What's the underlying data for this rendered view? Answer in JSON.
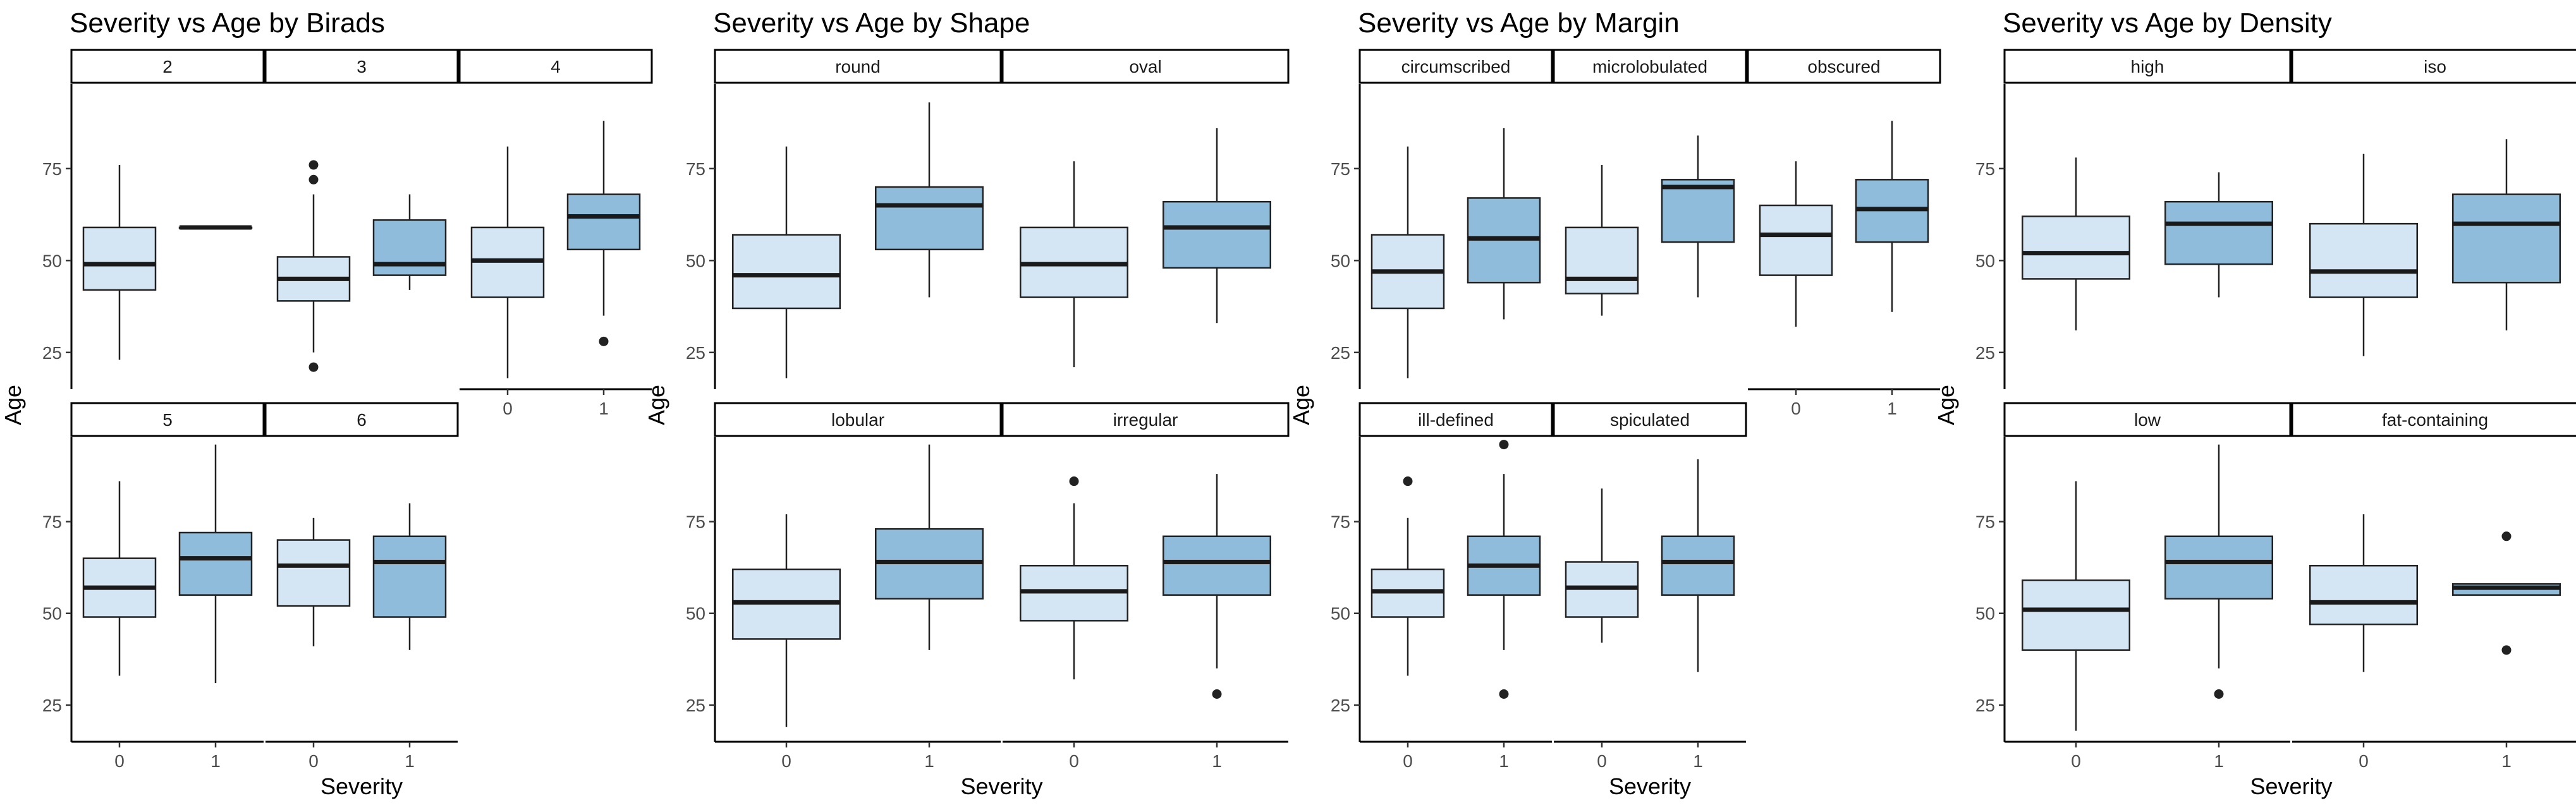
{
  "colors": {
    "severity_0": "#d4e5f4",
    "severity_1": "#8fbcdb",
    "outline": "#222222"
  },
  "chart_data": [
    {
      "type": "boxplot",
      "title": "Severity vs Age by Birads",
      "xlabel": "Severity",
      "ylabel": "Age",
      "x_categories": [
        "0",
        "1"
      ],
      "y_ticks": [
        25,
        50,
        75
      ],
      "ylim": [
        15,
        98
      ],
      "layout": {
        "cols": 3,
        "rows": 2
      },
      "panels": [
        {
          "label": "2",
          "boxes": [
            {
              "x": "0",
              "min": 23,
              "q1": 42,
              "median": 49,
              "q3": 59,
              "max": 76,
              "outliers": []
            },
            {
              "x": "1",
              "min": 59,
              "q1": 59,
              "median": 59,
              "q3": 59,
              "max": 59,
              "outliers": []
            }
          ]
        },
        {
          "label": "3",
          "boxes": [
            {
              "x": "0",
              "min": 25,
              "q1": 39,
              "median": 45,
              "q3": 51,
              "max": 68,
              "outliers": [
                76,
                72,
                21
              ]
            },
            {
              "x": "1",
              "min": 42,
              "q1": 46,
              "median": 49,
              "q3": 61,
              "max": 68,
              "outliers": []
            }
          ]
        },
        {
          "label": "4",
          "boxes": [
            {
              "x": "0",
              "min": 18,
              "q1": 40,
              "median": 50,
              "q3": 59,
              "max": 81,
              "outliers": []
            },
            {
              "x": "1",
              "min": 35,
              "q1": 53,
              "median": 62,
              "q3": 68,
              "max": 88,
              "outliers": [
                28
              ]
            }
          ]
        },
        {
          "label": "5",
          "boxes": [
            {
              "x": "0",
              "min": 33,
              "q1": 49,
              "median": 57,
              "q3": 65,
              "max": 86,
              "outliers": []
            },
            {
              "x": "1",
              "min": 31,
              "q1": 55,
              "median": 65,
              "q3": 72,
              "max": 96,
              "outliers": []
            }
          ]
        },
        {
          "label": "6",
          "boxes": [
            {
              "x": "0",
              "min": 41,
              "q1": 52,
              "median": 63,
              "q3": 70,
              "max": 76,
              "outliers": []
            },
            {
              "x": "1",
              "min": 40,
              "q1": 49,
              "median": 64,
              "q3": 71,
              "max": 80,
              "outliers": []
            }
          ]
        }
      ]
    },
    {
      "type": "boxplot",
      "title": "Severity vs Age by Shape",
      "xlabel": "Severity",
      "ylabel": "Age",
      "x_categories": [
        "0",
        "1"
      ],
      "y_ticks": [
        25,
        50,
        75
      ],
      "ylim": [
        15,
        98
      ],
      "layout": {
        "cols": 2,
        "rows": 2
      },
      "panels": [
        {
          "label": "round",
          "boxes": [
            {
              "x": "0",
              "min": 18,
              "q1": 37,
              "median": 46,
              "q3": 57,
              "max": 81,
              "outliers": []
            },
            {
              "x": "1",
              "min": 40,
              "q1": 53,
              "median": 65,
              "q3": 70,
              "max": 93,
              "outliers": []
            }
          ]
        },
        {
          "label": "oval",
          "boxes": [
            {
              "x": "0",
              "min": 21,
              "q1": 40,
              "median": 49,
              "q3": 59,
              "max": 77,
              "outliers": []
            },
            {
              "x": "1",
              "min": 33,
              "q1": 48,
              "median": 59,
              "q3": 66,
              "max": 86,
              "outliers": []
            }
          ]
        },
        {
          "label": "lobular",
          "boxes": [
            {
              "x": "0",
              "min": 19,
              "q1": 43,
              "median": 53,
              "q3": 62,
              "max": 77,
              "outliers": []
            },
            {
              "x": "1",
              "min": 40,
              "q1": 54,
              "median": 64,
              "q3": 73,
              "max": 96,
              "outliers": []
            }
          ]
        },
        {
          "label": "irregular",
          "boxes": [
            {
              "x": "0",
              "min": 32,
              "q1": 48,
              "median": 56,
              "q3": 63,
              "max": 80,
              "outliers": [
                86
              ]
            },
            {
              "x": "1",
              "min": 35,
              "q1": 55,
              "median": 64,
              "q3": 71,
              "max": 88,
              "outliers": [
                28
              ]
            }
          ]
        }
      ]
    },
    {
      "type": "boxplot",
      "title": "Severity vs Age by Margin",
      "xlabel": "Severity",
      "ylabel": "Age",
      "x_categories": [
        "0",
        "1"
      ],
      "y_ticks": [
        25,
        50,
        75
      ],
      "ylim": [
        15,
        98
      ],
      "layout": {
        "cols": 3,
        "rows": 2
      },
      "panels": [
        {
          "label": "circumscribed",
          "boxes": [
            {
              "x": "0",
              "min": 18,
              "q1": 37,
              "median": 47,
              "q3": 57,
              "max": 81,
              "outliers": []
            },
            {
              "x": "1",
              "min": 34,
              "q1": 44,
              "median": 56,
              "q3": 67,
              "max": 86,
              "outliers": []
            }
          ]
        },
        {
          "label": "microlobulated",
          "boxes": [
            {
              "x": "0",
              "min": 35,
              "q1": 41,
              "median": 45,
              "q3": 59,
              "max": 76,
              "outliers": []
            },
            {
              "x": "1",
              "min": 40,
              "q1": 55,
              "median": 70,
              "q3": 72,
              "max": 84,
              "outliers": []
            }
          ]
        },
        {
          "label": "obscured",
          "boxes": [
            {
              "x": "0",
              "min": 32,
              "q1": 46,
              "median": 57,
              "q3": 65,
              "max": 77,
              "outliers": []
            },
            {
              "x": "1",
              "min": 36,
              "q1": 55,
              "median": 64,
              "q3": 72,
              "max": 88,
              "outliers": []
            }
          ]
        },
        {
          "label": "ill-defined",
          "boxes": [
            {
              "x": "0",
              "min": 33,
              "q1": 49,
              "median": 56,
              "q3": 62,
              "max": 76,
              "outliers": [
                86
              ]
            },
            {
              "x": "1",
              "min": 40,
              "q1": 55,
              "median": 63,
              "q3": 71,
              "max": 88,
              "outliers": [
                96,
                28
              ]
            }
          ]
        },
        {
          "label": "spiculated",
          "boxes": [
            {
              "x": "0",
              "min": 42,
              "q1": 49,
              "median": 57,
              "q3": 64,
              "max": 84,
              "outliers": []
            },
            {
              "x": "1",
              "min": 34,
              "q1": 55,
              "median": 64,
              "q3": 71,
              "max": 92,
              "outliers": []
            }
          ]
        }
      ]
    },
    {
      "type": "boxplot",
      "title": "Severity vs Age by Density",
      "xlabel": "Severity",
      "ylabel": "Age",
      "x_categories": [
        "0",
        "1"
      ],
      "y_ticks": [
        25,
        50,
        75
      ],
      "ylim": [
        15,
        98
      ],
      "layout": {
        "cols": 2,
        "rows": 2
      },
      "panels": [
        {
          "label": "high",
          "boxes": [
            {
              "x": "0",
              "min": 31,
              "q1": 45,
              "median": 52,
              "q3": 62,
              "max": 78,
              "outliers": []
            },
            {
              "x": "1",
              "min": 40,
              "q1": 49,
              "median": 60,
              "q3": 66,
              "max": 74,
              "outliers": []
            }
          ]
        },
        {
          "label": "iso",
          "boxes": [
            {
              "x": "0",
              "min": 24,
              "q1": 40,
              "median": 47,
              "q3": 60,
              "max": 79,
              "outliers": []
            },
            {
              "x": "1",
              "min": 31,
              "q1": 44,
              "median": 60,
              "q3": 68,
              "max": 83,
              "outliers": []
            }
          ]
        },
        {
          "label": "low",
          "boxes": [
            {
              "x": "0",
              "min": 18,
              "q1": 40,
              "median": 51,
              "q3": 59,
              "max": 86,
              "outliers": []
            },
            {
              "x": "1",
              "min": 35,
              "q1": 54,
              "median": 64,
              "q3": 71,
              "max": 96,
              "outliers": [
                28
              ]
            }
          ]
        },
        {
          "label": "fat-containing",
          "boxes": [
            {
              "x": "0",
              "min": 34,
              "q1": 47,
              "median": 53,
              "q3": 63,
              "max": 77,
              "outliers": []
            },
            {
              "x": "1",
              "min": 55,
              "q1": 55,
              "median": 57,
              "q3": 58,
              "max": 58,
              "outliers": [
                71,
                40
              ]
            }
          ]
        }
      ]
    }
  ]
}
